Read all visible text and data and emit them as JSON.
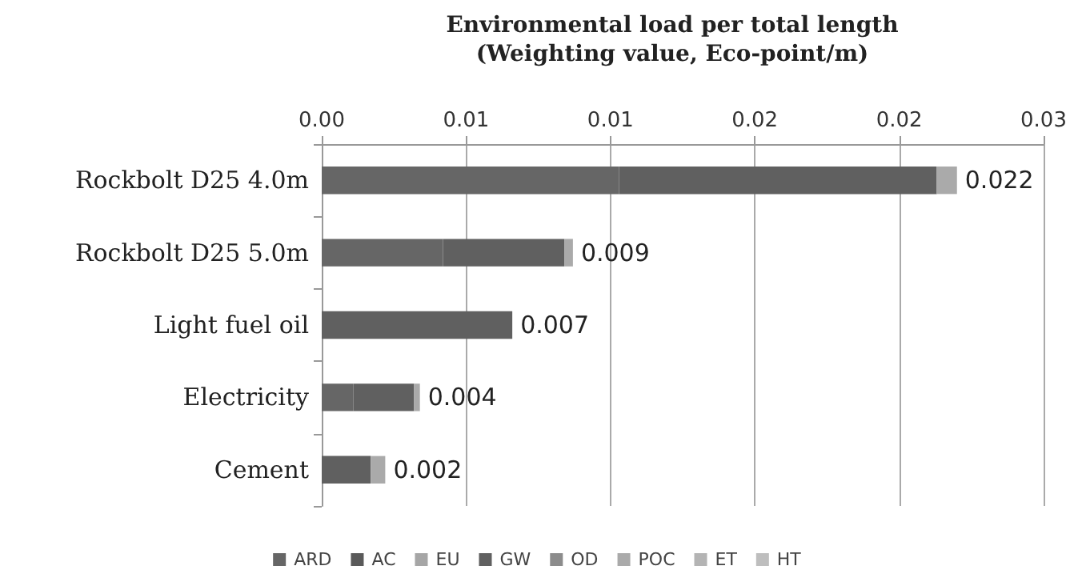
{
  "chart_data": {
    "type": "bar",
    "orientation": "horizontal",
    "stacked": true,
    "title": "Environmental load per total length\n(Weighting value, Eco-point/m)",
    "categories": [
      "Rockbolt D25 4.0m",
      "Rockbolt D25 5.0m",
      "Light fuel oil",
      "Electricity",
      "Cement"
    ],
    "series": [
      {
        "name": "ARD",
        "color": "#666666",
        "values": [
          0.0103,
          0.0042,
          null,
          0.0011,
          null
        ]
      },
      {
        "name": "AC",
        "color": "#5a5a5a",
        "values": [
          null,
          null,
          null,
          null,
          null
        ]
      },
      {
        "name": "EU",
        "color": "#a6a6a6",
        "values": [
          null,
          null,
          null,
          null,
          null
        ]
      },
      {
        "name": "GW",
        "color": "#606060",
        "values": [
          0.011,
          0.0042,
          0.0066,
          0.0021,
          0.0017
        ]
      },
      {
        "name": "OD",
        "color": "#8c8c8c",
        "values": [
          null,
          null,
          null,
          null,
          null
        ]
      },
      {
        "name": "POC",
        "color": "#aaaaaa",
        "values": [
          0.0007,
          0.0003,
          null,
          0.0002,
          0.0005
        ]
      },
      {
        "name": "ET",
        "color": "#b4b4b4",
        "values": [
          null,
          null,
          null,
          null,
          null
        ]
      },
      {
        "name": "HT",
        "color": "#bebebe",
        "values": [
          null,
          null,
          null,
          null,
          null
        ]
      }
    ],
    "totals": [
      "0.022",
      "0.009",
      "0.007",
      "0.004",
      "0.002"
    ],
    "xlim": [
      0,
      0.025
    ],
    "xticks": [
      {
        "value": 0,
        "label": "0.00"
      },
      {
        "value": 0.005,
        "label": "0.01"
      },
      {
        "value": 0.01,
        "label": "0.01"
      },
      {
        "value": 0.015,
        "label": "0.02"
      },
      {
        "value": 0.02,
        "label": "0.02"
      },
      {
        "value": 0.025,
        "label": "0.03"
      }
    ],
    "grid": "x",
    "legend": "bottom"
  }
}
